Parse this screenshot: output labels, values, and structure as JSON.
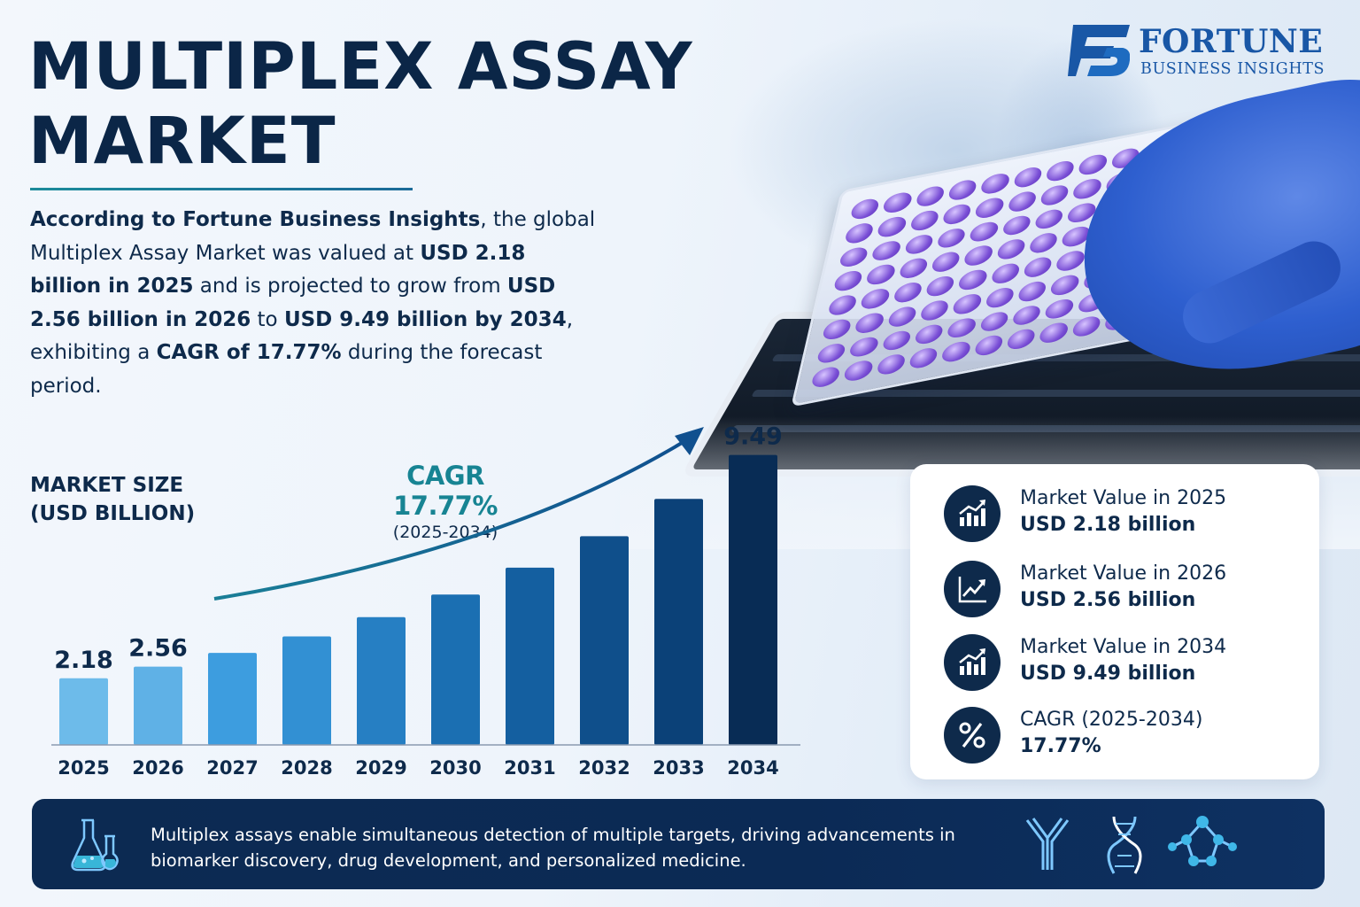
{
  "brand": {
    "name": "FORTUNE",
    "subtitle": "BUSINESS INSIGHTS",
    "colors": {
      "primary": "#1957a6",
      "navy": "#0b2647",
      "teal": "#178493"
    }
  },
  "title": {
    "line1": "MULTIPLEX ASSAY",
    "line2": "MARKET"
  },
  "intro": {
    "p1_bold": "According to Fortune Business Insights",
    "p1_rest": ", the global Multiplex Assay Market was valued at ",
    "p2_bold": "USD 2.18 billion in 2025",
    "p2_rest": " and is projected to grow from ",
    "p3_bold": "USD 2.56 billion in 2026",
    "p3_rest": " to ",
    "p4_bold": "USD 9.49 billion by 2034",
    "p4_rest": ", exhibiting a ",
    "p5_bold": "CAGR of 17.77%",
    "p5_rest": " during the forecast period."
  },
  "chart_label": {
    "line1": "MARKET SIZE",
    "line2": "(USD BILLION)"
  },
  "cagr_note": {
    "value": "CAGR 17.77%",
    "period": "(2025-2034)"
  },
  "chart_data": {
    "type": "bar",
    "ylabel": "MARKET SIZE (USD BILLION)",
    "categories": [
      "2025",
      "2026",
      "2027",
      "2028",
      "2029",
      "2030",
      "2031",
      "2032",
      "2033",
      "2034"
    ],
    "values": [
      2.18,
      2.56,
      3.01,
      3.55,
      4.18,
      4.92,
      5.8,
      6.83,
      8.05,
      9.49
    ],
    "data_labels": {
      "2025": "2.18",
      "2026": "2.56",
      "2034": "9.49"
    },
    "bar_colors": [
      "#6dbbea",
      "#5fb1e6",
      "#3d9ddf",
      "#3290d3",
      "#267fc3",
      "#1b6fb2",
      "#145fa0",
      "#0f4f8b",
      "#0b4178",
      "#082c55"
    ],
    "annotation": "CAGR 17.77% (2025-2034)",
    "ylim": [
      0,
      10
    ]
  },
  "stats": [
    {
      "icon": "bar-chart-up-icon",
      "head": "Market Value in 2025",
      "value": "USD 2.18 billion"
    },
    {
      "icon": "trend-up-icon",
      "head": "Market Value in 2026",
      "value": "USD 2.56 billion"
    },
    {
      "icon": "bar-chart-up-icon",
      "head": "Market Value in 2034",
      "value": "USD 9.49 billion"
    },
    {
      "icon": "percent-icon",
      "head": "CAGR (2025-2034)",
      "value": "17.77%"
    }
  ],
  "footer": {
    "text": "Multiplex assays enable simultaneous detection of multiple targets, driving advancements in biomarker discovery, drug development, and personalized medicine.",
    "icons": [
      "lab-flask-icon",
      "antibody-icon",
      "dna-icon",
      "molecule-icon"
    ]
  }
}
